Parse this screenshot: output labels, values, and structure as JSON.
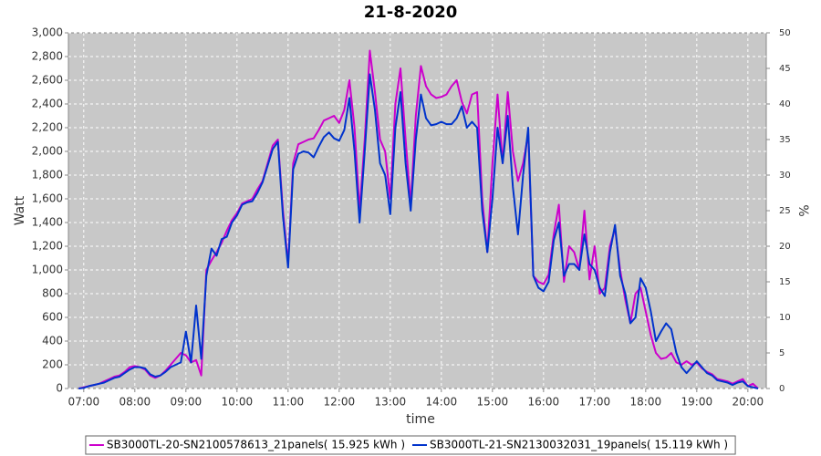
{
  "chart_data": {
    "type": "line",
    "title": "21-8-2020",
    "x_label": "time",
    "y_label": "Watt",
    "y2_label": "%",
    "x": [
      6.9,
      7.0,
      7.1,
      7.2,
      7.3,
      7.4,
      7.5,
      7.6,
      7.7,
      7.8,
      7.9,
      8.0,
      8.1,
      8.2,
      8.3,
      8.4,
      8.5,
      8.6,
      8.7,
      8.8,
      8.9,
      9.0,
      9.1,
      9.2,
      9.3,
      9.4,
      9.5,
      9.6,
      9.7,
      9.8,
      9.9,
      10.0,
      10.1,
      10.2,
      10.3,
      10.4,
      10.5,
      10.6,
      10.7,
      10.8,
      10.9,
      11.0,
      11.1,
      11.2,
      11.3,
      11.4,
      11.5,
      11.6,
      11.7,
      11.8,
      11.9,
      12.0,
      12.1,
      12.2,
      12.3,
      12.4,
      12.5,
      12.6,
      12.7,
      12.8,
      12.9,
      13.0,
      13.1,
      13.2,
      13.3,
      13.4,
      13.5,
      13.6,
      13.7,
      13.8,
      13.9,
      14.0,
      14.1,
      14.2,
      14.3,
      14.4,
      14.5,
      14.6,
      14.7,
      14.8,
      14.9,
      15.0,
      15.1,
      15.2,
      15.3,
      15.4,
      15.5,
      15.6,
      15.7,
      15.8,
      15.9,
      16.0,
      16.1,
      16.2,
      16.3,
      16.4,
      16.5,
      16.6,
      16.7,
      16.8,
      16.9,
      17.0,
      17.1,
      17.2,
      17.3,
      17.4,
      17.5,
      17.6,
      17.7,
      17.8,
      17.9,
      18.0,
      18.1,
      18.2,
      18.3,
      18.4,
      18.5,
      18.6,
      18.7,
      18.8,
      18.9,
      19.0,
      19.1,
      19.2,
      19.3,
      19.4,
      19.5,
      19.6,
      19.7,
      19.8,
      19.9,
      20.0,
      20.1,
      20.2
    ],
    "series": [
      {
        "name": "SB3000TL-20-SN2100578613_21panels( 15.925 kWh )",
        "color": "#cc00cc",
        "values": [
          0,
          10,
          20,
          30,
          40,
          60,
          80,
          100,
          110,
          140,
          180,
          190,
          180,
          160,
          110,
          90,
          110,
          150,
          200,
          250,
          300,
          280,
          220,
          240,
          110,
          1000,
          1080,
          1150,
          1230,
          1330,
          1420,
          1480,
          1560,
          1580,
          1600,
          1680,
          1750,
          1900,
          2050,
          2100,
          1500,
          1050,
          1900,
          2060,
          2080,
          2100,
          2110,
          2180,
          2260,
          2280,
          2300,
          2240,
          2350,
          2600,
          2200,
          1500,
          2100,
          2850,
          2500,
          2100,
          2000,
          1600,
          2400,
          2700,
          2100,
          1550,
          2300,
          2720,
          2550,
          2480,
          2450,
          2460,
          2480,
          2550,
          2600,
          2420,
          2320,
          2480,
          2500,
          1600,
          1150,
          1900,
          2480,
          1900,
          2500,
          2000,
          1750,
          1900,
          2150,
          950,
          900,
          880,
          960,
          1300,
          1550,
          900,
          1200,
          1150,
          1000,
          1500,
          920,
          1200,
          800,
          850,
          1200,
          1350,
          1000,
          750,
          550,
          800,
          850,
          650,
          450,
          300,
          250,
          260,
          300,
          220,
          200,
          230,
          200,
          220,
          170,
          140,
          120,
          80,
          70,
          60,
          40,
          60,
          80,
          20,
          40,
          0
        ]
      },
      {
        "name": "SB3000TL-21-SN2130032031_19panels( 15.119 kWh )",
        "color": "#0033cc",
        "values": [
          0,
          5,
          20,
          30,
          40,
          50,
          70,
          90,
          100,
          130,
          160,
          180,
          180,
          170,
          120,
          100,
          110,
          140,
          180,
          200,
          220,
          480,
          220,
          700,
          250,
          950,
          1180,
          1120,
          1260,
          1280,
          1400,
          1460,
          1550,
          1570,
          1580,
          1650,
          1740,
          1880,
          2020,
          2080,
          1450,
          1020,
          1850,
          1980,
          2000,
          1990,
          1950,
          2040,
          2120,
          2160,
          2110,
          2090,
          2180,
          2450,
          2000,
          1400,
          2000,
          2650,
          2350,
          1900,
          1800,
          1470,
          2200,
          2500,
          1900,
          1500,
          2100,
          2480,
          2280,
          2220,
          2230,
          2250,
          2230,
          2230,
          2280,
          2380,
          2200,
          2250,
          2200,
          1500,
          1150,
          1600,
          2200,
          1900,
          2300,
          1700,
          1300,
          1800,
          2200,
          950,
          850,
          820,
          900,
          1250,
          1400,
          950,
          1050,
          1050,
          1000,
          1300,
          1050,
          1000,
          850,
          780,
          1150,
          1380,
          950,
          800,
          550,
          600,
          930,
          850,
          650,
          400,
          480,
          550,
          500,
          300,
          180,
          130,
          180,
          230,
          180,
          130,
          110,
          70,
          60,
          50,
          30,
          50,
          60,
          20,
          10,
          0
        ]
      }
    ],
    "xlim": [
      6.7,
      20.36
    ],
    "xticks": [
      {
        "value": 7,
        "label": "07:00"
      },
      {
        "value": 8,
        "label": "08:00"
      },
      {
        "value": 9,
        "label": "09:00"
      },
      {
        "value": 10,
        "label": "10:00"
      },
      {
        "value": 11,
        "label": "11:00"
      },
      {
        "value": 12,
        "label": "12:00"
      },
      {
        "value": 13,
        "label": "13:00"
      },
      {
        "value": 14,
        "label": "14:00"
      },
      {
        "value": 15,
        "label": "15:00"
      },
      {
        "value": 16,
        "label": "16:00"
      },
      {
        "value": 17,
        "label": "17:00"
      },
      {
        "value": 18,
        "label": "18:00"
      },
      {
        "value": 19,
        "label": "19:00"
      },
      {
        "value": 20,
        "label": "20:00"
      }
    ],
    "ylim": [
      0,
      3000
    ],
    "yticks": [
      0,
      200,
      400,
      600,
      800,
      {
        "value": 1000,
        "label": "1,000"
      },
      {
        "value": 1200,
        "label": "1,200"
      },
      {
        "value": 1400,
        "label": "1,400"
      },
      {
        "value": 1600,
        "label": "1,600"
      },
      {
        "value": 1800,
        "label": "1,800"
      },
      {
        "value": 2000,
        "label": "2,000"
      },
      {
        "value": 2200,
        "label": "2,200"
      },
      {
        "value": 2400,
        "label": "2,400"
      },
      {
        "value": 2600,
        "label": "2,600"
      },
      {
        "value": 2800,
        "label": "2,800"
      },
      {
        "value": 3000,
        "label": "3,000"
      }
    ],
    "y2lim": [
      0,
      50
    ],
    "y2ticks": [
      0,
      5,
      10,
      15,
      20,
      25,
      30,
      35,
      40,
      45,
      50
    ],
    "grid": true,
    "legend": "bottom",
    "background": "#c8c8c8"
  }
}
